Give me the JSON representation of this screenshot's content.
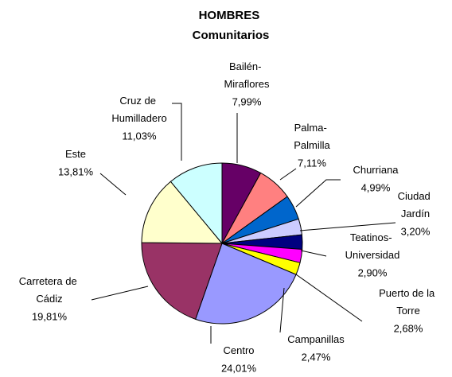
{
  "chart_data": {
    "type": "pie",
    "title": "HOMBRES\nComunitarios",
    "categories": [
      "Bailén-\nMiraflores",
      "Palma-\nPalmilla",
      "Churriana",
      "Ciudad\nJardín",
      "Teatinos-\nUniversidad",
      "Puerto de la\nTorre",
      "Campanillas",
      "Centro",
      "Carretera de\nCádiz",
      "Este",
      "Cruz de\nHumilladero"
    ],
    "values": [
      7.99,
      7.11,
      4.99,
      3.2,
      2.9,
      2.68,
      2.47,
      24.01,
      19.81,
      13.81,
      11.03
    ],
    "value_labels": [
      "7,99%",
      "7,11%",
      "4,99%",
      "3,20%",
      "2,90%",
      "2,68%",
      "2,47%",
      "24,01%",
      "19,81%",
      "13,81%",
      "11,03%"
    ],
    "colors": [
      "#660066",
      "#ff8080",
      "#0066cc",
      "#ccccff",
      "#000080",
      "#ff00ff",
      "#ffff00",
      "#9999ff",
      "#993366",
      "#ffffcc",
      "#ccffff"
    ]
  }
}
